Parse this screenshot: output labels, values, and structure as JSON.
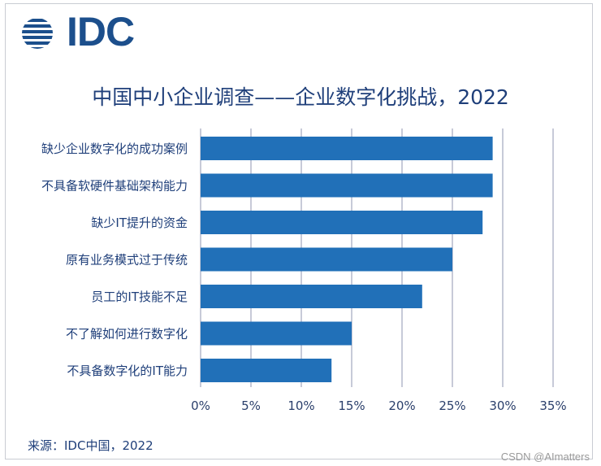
{
  "logo": {
    "text": "IDC"
  },
  "chart_data": {
    "type": "bar",
    "orientation": "horizontal",
    "title": "中国中小企业调查——企业数字化挑战，2022",
    "categories": [
      "缺少企业数字化的成功案例",
      "不具备软硬件基础架构能力",
      "缺少IT提升的资金",
      "原有业务模式过于传统",
      "员工的IT技能不足",
      "不了解如何进行数字化",
      "不具备数字化的IT能力"
    ],
    "values": [
      29,
      29,
      28,
      25,
      22,
      15,
      13
    ],
    "unit": "%",
    "xlim": [
      0,
      35
    ],
    "xticks": [
      "0%",
      "5%",
      "10%",
      "15%",
      "20%",
      "25%",
      "30%",
      "35%"
    ],
    "grid": true,
    "bar_color": "#2170b8",
    "grid_color": "#b9bccf"
  },
  "footer": {
    "source": "来源：IDC中国，2022"
  },
  "watermark": "CSDN @AImatters"
}
